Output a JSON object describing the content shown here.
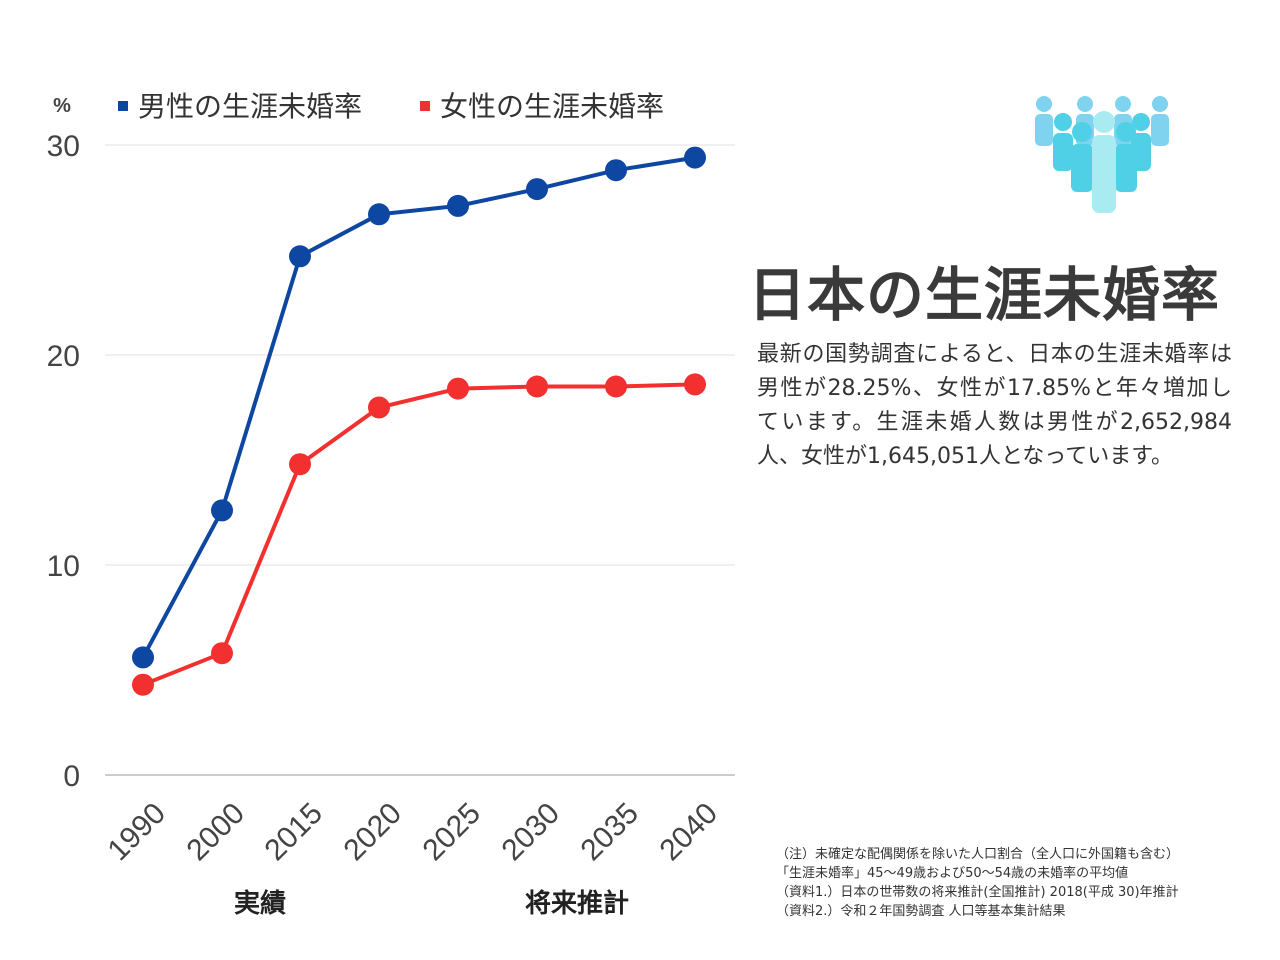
{
  "chart_data": {
    "type": "line",
    "unit": "%",
    "categories": [
      "1990",
      "2000",
      "2015",
      "2020",
      "2025",
      "2030",
      "2035",
      "2040"
    ],
    "series": [
      {
        "name": "男性の生涯未婚率",
        "color": "#0d47a1",
        "values": [
          5.6,
          12.6,
          24.7,
          26.7,
          27.1,
          27.9,
          28.8,
          29.4
        ]
      },
      {
        "name": "女性の生涯未婚率",
        "color": "#f23030",
        "values": [
          4.3,
          5.8,
          14.8,
          17.5,
          18.4,
          18.5,
          18.5,
          18.6
        ]
      }
    ],
    "yticks": [
      "0",
      "10",
      "20",
      "30"
    ],
    "ylim": [
      0,
      30
    ],
    "grid": true,
    "legend_position": "top",
    "group_labels": [
      "実績",
      "将来推計"
    ]
  },
  "title": "日本の生涯未婚率",
  "description": "最新の国勢調査によると、日本の生涯未婚率は男性が28.25%、女性が17.85%と年々増加しています。生涯未婚人数は男性が2,652,984人、女性が1,645,051人となっています。",
  "notes": [
    "（注）未確定な配偶関係を除いた人口割合（全人口に外国籍も含む）",
    "「生涯未婚率」45〜49歳および50〜54歳の未婚率の平均値",
    "（資料1.）日本の世帯数の将来推計(全国推計) 2018(平成 30)年推計",
    "（資料2.）令和２年国勢調査 人口等基本集計結果"
  ],
  "icon": "people-group-icon",
  "colors": {
    "icon_light": "#a8ecf2",
    "icon_mid": "#4fd0e6",
    "icon_dark": "#7fd3ee"
  }
}
